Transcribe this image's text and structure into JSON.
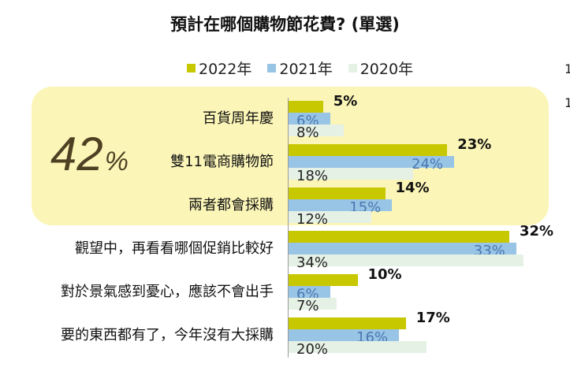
{
  "chart_data": {
    "type": "bar",
    "orientation": "horizontal",
    "title": "預計在哪個購物節花費? (單選)",
    "categories": [
      "百貨周年慶",
      "雙11電商購物節",
      "兩者都會採購",
      "觀望中，再看看哪個促銷比較好",
      "對於景氣感到憂心，應該不會出手",
      "要的東西都有了，今年沒有大採購"
    ],
    "series": [
      {
        "name": "2022年",
        "color": "#c8c800",
        "label_color": "#111111",
        "values": [
          5,
          23,
          14,
          32,
          10,
          17
        ]
      },
      {
        "name": "2021年",
        "color": "#98c4e6",
        "label_color": "#4a78b0",
        "values": [
          6,
          24,
          15,
          33,
          6,
          16
        ]
      },
      {
        "name": "2020年",
        "color": "#e6f1e6",
        "label_color": "#222222",
        "values": [
          8,
          18,
          12,
          34,
          7,
          20
        ]
      }
    ],
    "value_suffix": "%",
    "xlim": [
      0,
      36
    ],
    "grid": false,
    "legend_position": "top",
    "highlight": {
      "value": "42",
      "suffix": "%",
      "color": "#fbf5b7",
      "categories": [
        0,
        1,
        2
      ]
    }
  },
  "edge_notes": [
    "1",
    "1"
  ]
}
